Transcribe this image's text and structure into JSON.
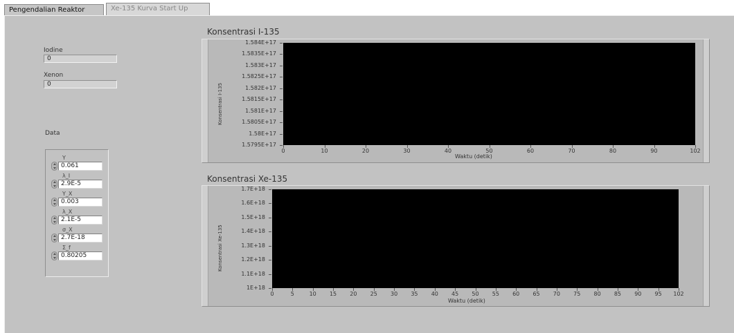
{
  "tabs": [
    {
      "label": "Pengendalian Reaktor"
    },
    {
      "label": "Xe-135 Kurva Start Up"
    }
  ],
  "indicators": {
    "iodine": {
      "label": "Iodine",
      "value": "0"
    },
    "xenon": {
      "label": "Xenon",
      "value": "0"
    }
  },
  "data_group": {
    "label": "Data",
    "controls": [
      {
        "label": "Y",
        "value": "0.061"
      },
      {
        "label": "λ_I",
        "value": "2.9E-5"
      },
      {
        "label": "Y_X",
        "value": "0.003"
      },
      {
        "label": "λ_X",
        "value": "2.1E-5"
      },
      {
        "label": "σ_X",
        "value": "2.7E-18"
      },
      {
        "label": "Σ_f",
        "value": "0.80205"
      }
    ]
  },
  "icons": {
    "spinner": "spinner-icon"
  },
  "chart_data": [
    {
      "type": "line",
      "title": "Konsentrasi I-135",
      "xlabel": "Waktu (detik)",
      "ylabel": "Konsentrasi I-135",
      "yticks": [
        "1.584E+17",
        "1.5835E+17",
        "1.583E+17",
        "1.5825E+17",
        "1.582E+17",
        "1.5815E+17",
        "1.581E+17",
        "1.5805E+17",
        "1.58E+17",
        "1.5795E+17"
      ],
      "xticks": [
        "0",
        "10",
        "20",
        "30",
        "40",
        "50",
        "60",
        "70",
        "80",
        "90",
        "102"
      ],
      "xlim": [
        0,
        102
      ],
      "ylim": [
        1.5795e+17,
        1.584e+17
      ],
      "background": "#000000",
      "series": []
    },
    {
      "type": "line",
      "title": "Konsentrasi Xe-135",
      "xlabel": "Waktu (detik)",
      "ylabel": "Konsentrasi Xe-135",
      "yticks": [
        "1.7E+18",
        "1.6E+18",
        "1.5E+18",
        "1.4E+18",
        "1.3E+18",
        "1.2E+18",
        "1.1E+18",
        "1E+18"
      ],
      "xticks": [
        "0",
        "5",
        "10",
        "15",
        "20",
        "25",
        "30",
        "35",
        "40",
        "45",
        "50",
        "55",
        "60",
        "65",
        "70",
        "75",
        "80",
        "85",
        "90",
        "95",
        "102"
      ],
      "xlim": [
        0,
        102
      ],
      "ylim": [
        1e+18,
        1.7e+18
      ],
      "background": "#000000",
      "series": []
    }
  ]
}
